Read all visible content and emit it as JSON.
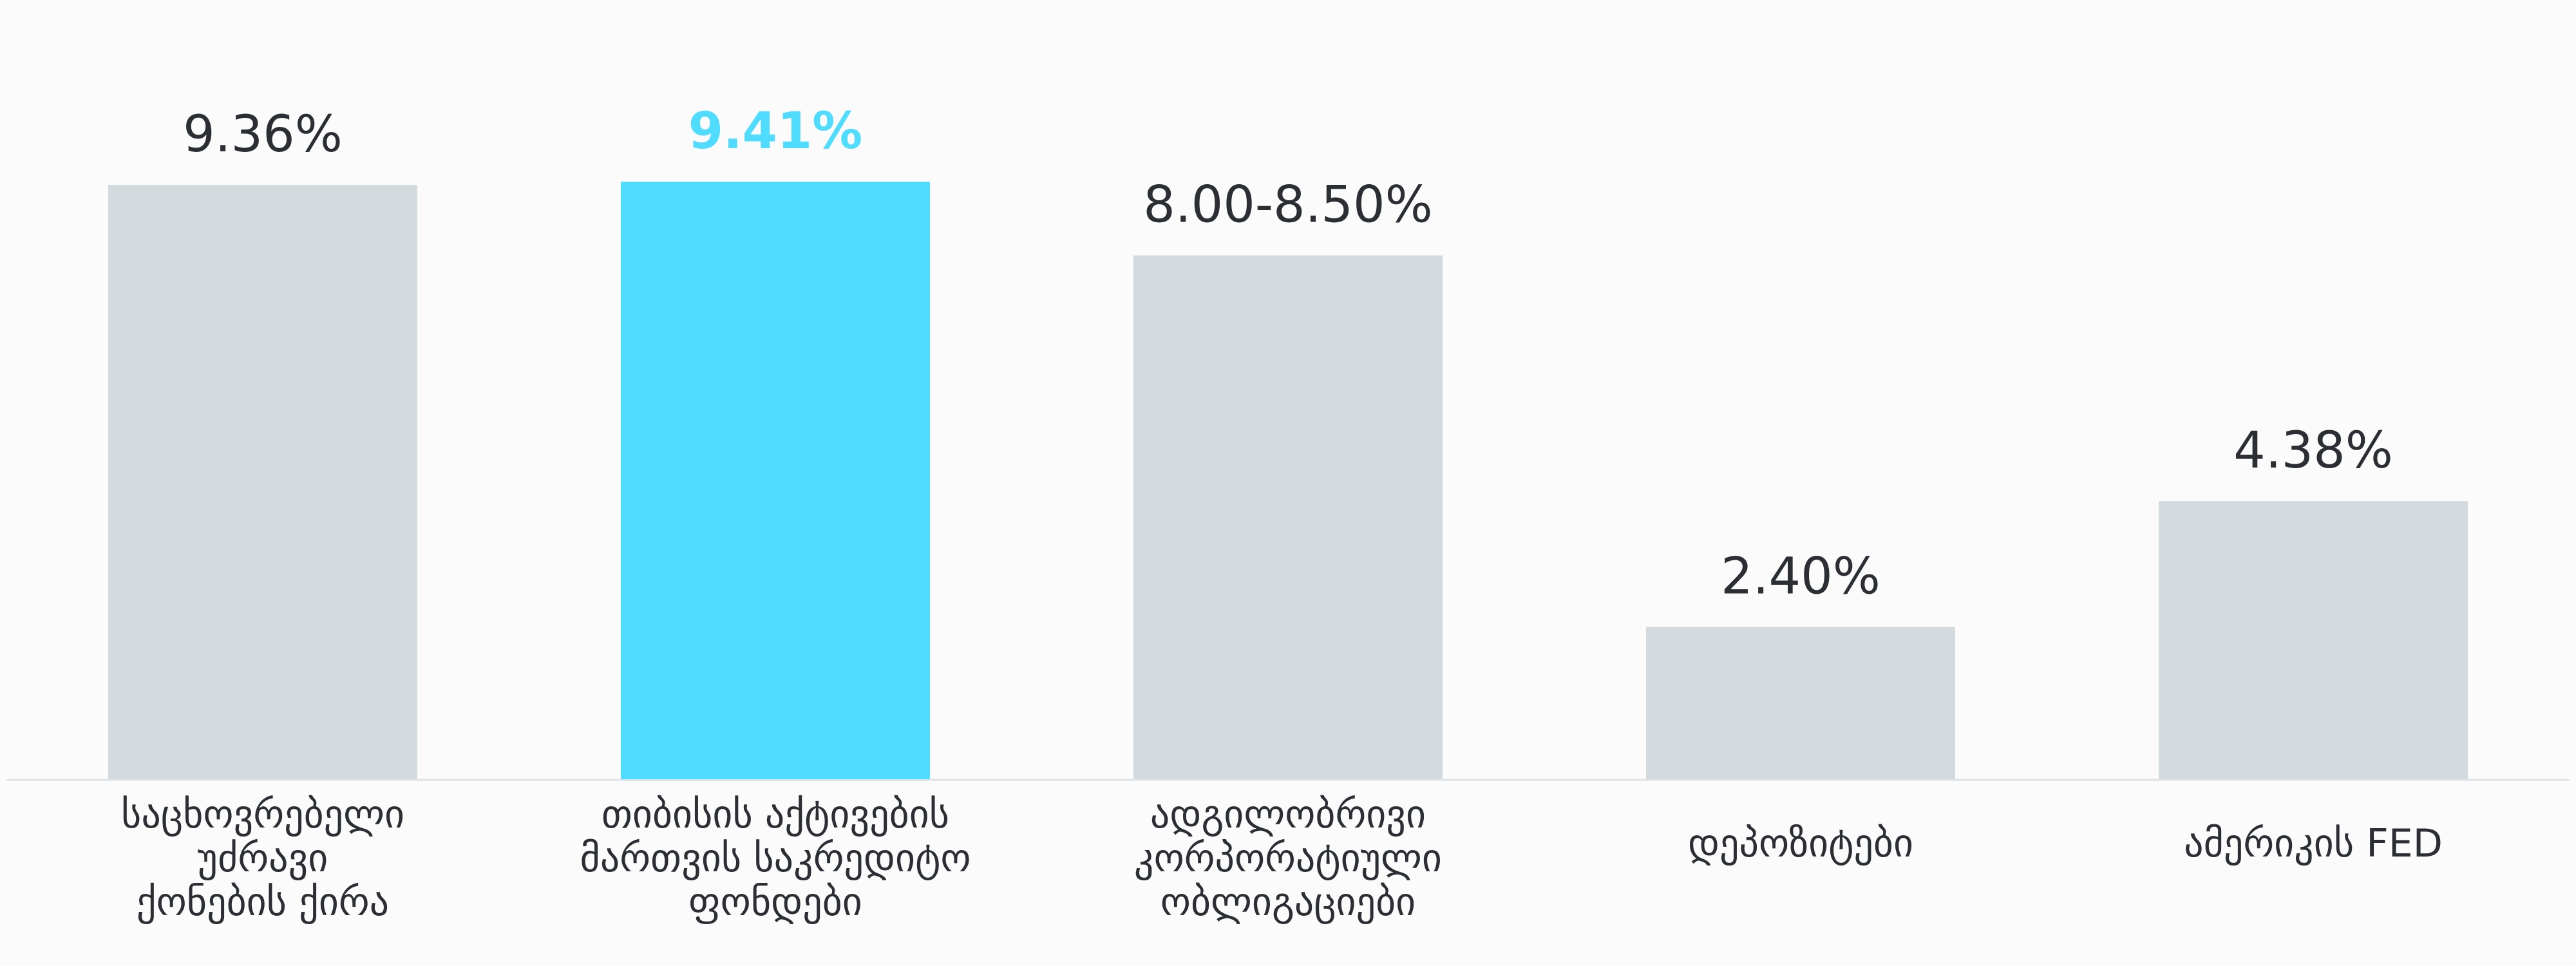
{
  "chart_data": {
    "type": "bar",
    "title": "",
    "xlabel": "",
    "ylabel": "",
    "ylim": [
      0,
      10
    ],
    "grid": false,
    "legend": "none",
    "categories": [
      [
        "საცხოვრებელი",
        "უძრავი",
        "ქონების ქირა"
      ],
      [
        "თიბისის აქტივების",
        "მართვის საკრედიტო",
        "ფონდები"
      ],
      [
        "ადგილობრივი",
        "კორპორატიული",
        "ობლიგაციები"
      ],
      [
        "დეპოზიტები"
      ],
      [
        "ამერიკის FED"
      ]
    ],
    "values": [
      9.36,
      9.41,
      8.25,
      2.4,
      4.38
    ],
    "value_labels": [
      "9.36%",
      "9.41%",
      "8.00-8.50%",
      "2.40%",
      "4.38%"
    ],
    "highlight_index": 1,
    "colors": {
      "bar": "#d4dbde",
      "highlight": "#4fdcff",
      "text": "#2b2f33",
      "baseline": "#dde2e4",
      "background": "#fbfbfb"
    }
  }
}
